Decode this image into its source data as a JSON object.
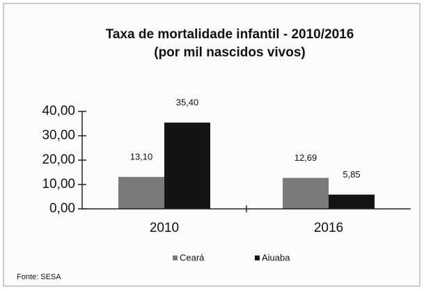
{
  "chart_data": {
    "type": "bar",
    "title": "Taxa de mortalidade infantil - 2010/2016",
    "subtitle": "(por mil nascidos vivos)",
    "categories": [
      "2010",
      "2016"
    ],
    "series": [
      {
        "name": "Ceará",
        "color": "#7a7a7a",
        "values": [
          13.1,
          12.69
        ],
        "value_labels": [
          "13,10",
          "12,69"
        ]
      },
      {
        "name": "Aiuaba",
        "color": "#141414",
        "values": [
          35.4,
          5.85
        ],
        "value_labels": [
          "35,40",
          "5,85"
        ]
      }
    ],
    "ylim": [
      0,
      40
    ],
    "yticks": [
      {
        "value": 0,
        "label": "0,00"
      },
      {
        "value": 10,
        "label": "10,00"
      },
      {
        "value": 20,
        "label": "20,00"
      },
      {
        "value": 30,
        "label": "30,00"
      },
      {
        "value": 40,
        "label": "40,00"
      }
    ],
    "legend": "bottom",
    "source": "Fonte: SESA"
  }
}
